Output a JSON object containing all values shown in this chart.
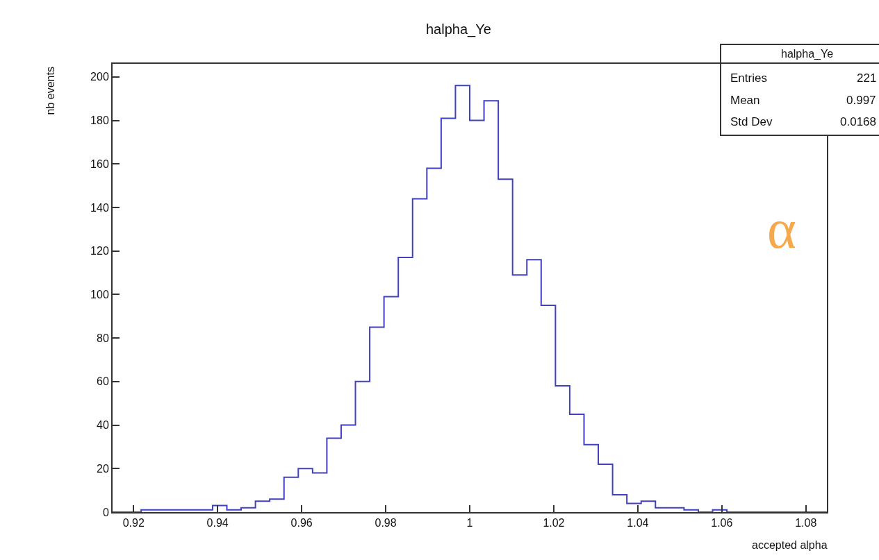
{
  "chart_data": {
    "type": "histogram",
    "title": "halpha_Ye",
    "xlabel": "accepted alpha",
    "ylabel": "nb events",
    "bins": [
      0.915,
      0.9184,
      0.9218,
      0.9252,
      0.9286,
      0.932,
      0.9354,
      0.9388,
      0.9422,
      0.9456,
      0.949,
      0.9524,
      0.9558,
      0.9592,
      0.9626,
      0.966,
      0.9694,
      0.9728,
      0.9762,
      0.9796,
      0.983,
      0.9864,
      0.9898,
      0.9932,
      0.9966,
      1.0,
      1.0034,
      1.0068,
      1.0102,
      1.0136,
      1.017,
      1.0204,
      1.0238,
      1.0272,
      1.0306,
      1.034,
      1.0374,
      1.0408,
      1.0442,
      1.0476,
      1.051,
      1.0544,
      1.0578,
      1.0612,
      1.0646,
      1.068,
      1.0714,
      1.0748,
      1.0782,
      1.0816,
      1.085
    ],
    "values": [
      0,
      0,
      1,
      1,
      1,
      1,
      1,
      3,
      1,
      2,
      5,
      6,
      16,
      20,
      18,
      34,
      40,
      60,
      85,
      99,
      117,
      144,
      158,
      181,
      196,
      180,
      189,
      153,
      109,
      116,
      95,
      58,
      45,
      31,
      22,
      8,
      4,
      5,
      2,
      2,
      1,
      0,
      1,
      0,
      0,
      0,
      0,
      0,
      0,
      0
    ],
    "color": "#4040c0",
    "xlim": [
      0.915,
      1.085
    ],
    "ylim": [
      0,
      206
    ],
    "xticks": [
      0.92,
      0.94,
      0.96,
      0.98,
      1,
      1.02,
      1.04,
      1.06,
      1.08
    ],
    "yticks": [
      0,
      20,
      40,
      60,
      80,
      100,
      120,
      140,
      160,
      180,
      200
    ],
    "annotations": [
      "halpha_Ye",
      "Entries",
      "221",
      "Mean",
      "0.997",
      "Std Dev",
      "0.0168",
      "α"
    ]
  }
}
